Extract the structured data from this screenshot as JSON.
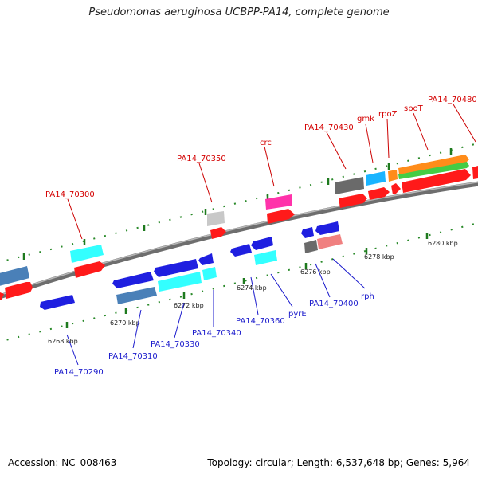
{
  "title": "Pseudomonas aeruginosa UCBPP-PA14, complete genome",
  "footer": {
    "accession": "Accession: NC_008463",
    "stats": "Topology: circular; Length: 6,537,648 bp; Genes: 5,964"
  },
  "ticks": [
    {
      "label": "6268 kbp"
    },
    {
      "label": "6270 kbp"
    },
    {
      "label": "6272 kbp"
    },
    {
      "label": "6274 kbp"
    },
    {
      "label": "6276 kbp"
    },
    {
      "label": "6278 kbp"
    },
    {
      "label": "6280 kbp"
    }
  ],
  "labels_forward": [
    {
      "text": "PA14_70300"
    },
    {
      "text": "PA14_70350"
    },
    {
      "text": "crc"
    },
    {
      "text": "PA14_70430"
    },
    {
      "text": "gmk"
    },
    {
      "text": "rpoZ"
    },
    {
      "text": "spoT"
    },
    {
      "text": "PA14_70480"
    }
  ],
  "labels_reverse": [
    {
      "text": "PA14_70290"
    },
    {
      "text": "PA14_70310"
    },
    {
      "text": "PA14_70330"
    },
    {
      "text": "PA14_70340"
    },
    {
      "text": "PA14_70360"
    },
    {
      "text": "pyrE"
    },
    {
      "text": "PA14_70400"
    },
    {
      "text": "rph"
    }
  ],
  "colors": {
    "forward_label": "#d40000",
    "reverse_label": "#1a1acc",
    "red": "#ff1a1a",
    "blue": "#1f1fe0",
    "cyan": "#33ffff",
    "steelblue": "#4a80b8",
    "gray": "#6a6a6a",
    "lightgray": "#c8c8c8",
    "pink": "#ff33aa",
    "orange": "#ff8c1a",
    "green": "#44cc44",
    "deepskyblue": "#1ab4ff",
    "salmon": "#f08080",
    "tick": "#2a8a2a"
  }
}
